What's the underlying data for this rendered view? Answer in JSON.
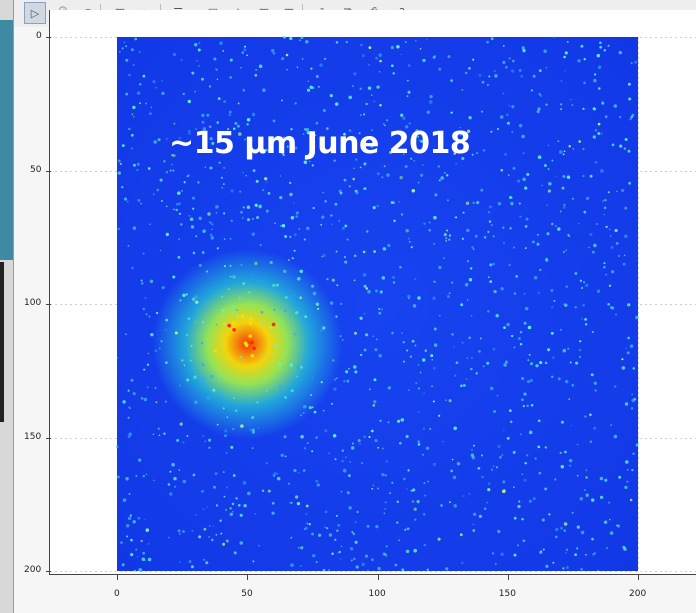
{
  "toolbar": {
    "buttons": [
      {
        "name": "pointer-icon",
        "glyph": "▷",
        "active": true
      },
      {
        "name": "zoom-icon",
        "glyph": "🔍",
        "active": false
      },
      {
        "name": "pan-icon",
        "glyph": "◎",
        "active": false
      },
      {
        "name": "grid-icon",
        "glyph": "▦",
        "active": false
      },
      {
        "name": "axes-icon",
        "glyph": "⊾",
        "active": false
      },
      {
        "name": "layout-icon",
        "glyph": "☰▾",
        "active": false
      },
      {
        "name": "image-icon",
        "glyph": "▣",
        "active": false
      },
      {
        "name": "crosshair-icon",
        "glyph": "⌖",
        "active": false
      },
      {
        "name": "colormap-icon",
        "glyph": "▦",
        "active": false
      },
      {
        "name": "contrast-icon",
        "glyph": "▩",
        "active": false
      },
      {
        "name": "export-icon",
        "glyph": "⇩",
        "active": false
      },
      {
        "name": "copy-icon",
        "glyph": "⧉",
        "active": false
      },
      {
        "name": "print-icon",
        "glyph": "⎙",
        "active": false
      },
      {
        "name": "help-icon",
        "glyph": "?",
        "active": false
      }
    ]
  },
  "plot": {
    "annotation": "~15 µm June 2018",
    "y_ticks": [
      "0",
      "50",
      "100",
      "150",
      "200"
    ],
    "x_ticks": [
      "0",
      "50",
      "100",
      "150",
      "200"
    ],
    "xlim": [
      0,
      200
    ],
    "ylim": [
      0,
      200
    ],
    "colors": {
      "background": "#1238e6",
      "hotspot_core": "#ff3c00",
      "hotspot_mid": "#ffdc00",
      "speckle": "#5ff5d8"
    },
    "hotspot_center": {
      "x": 50,
      "y": 115
    }
  }
}
